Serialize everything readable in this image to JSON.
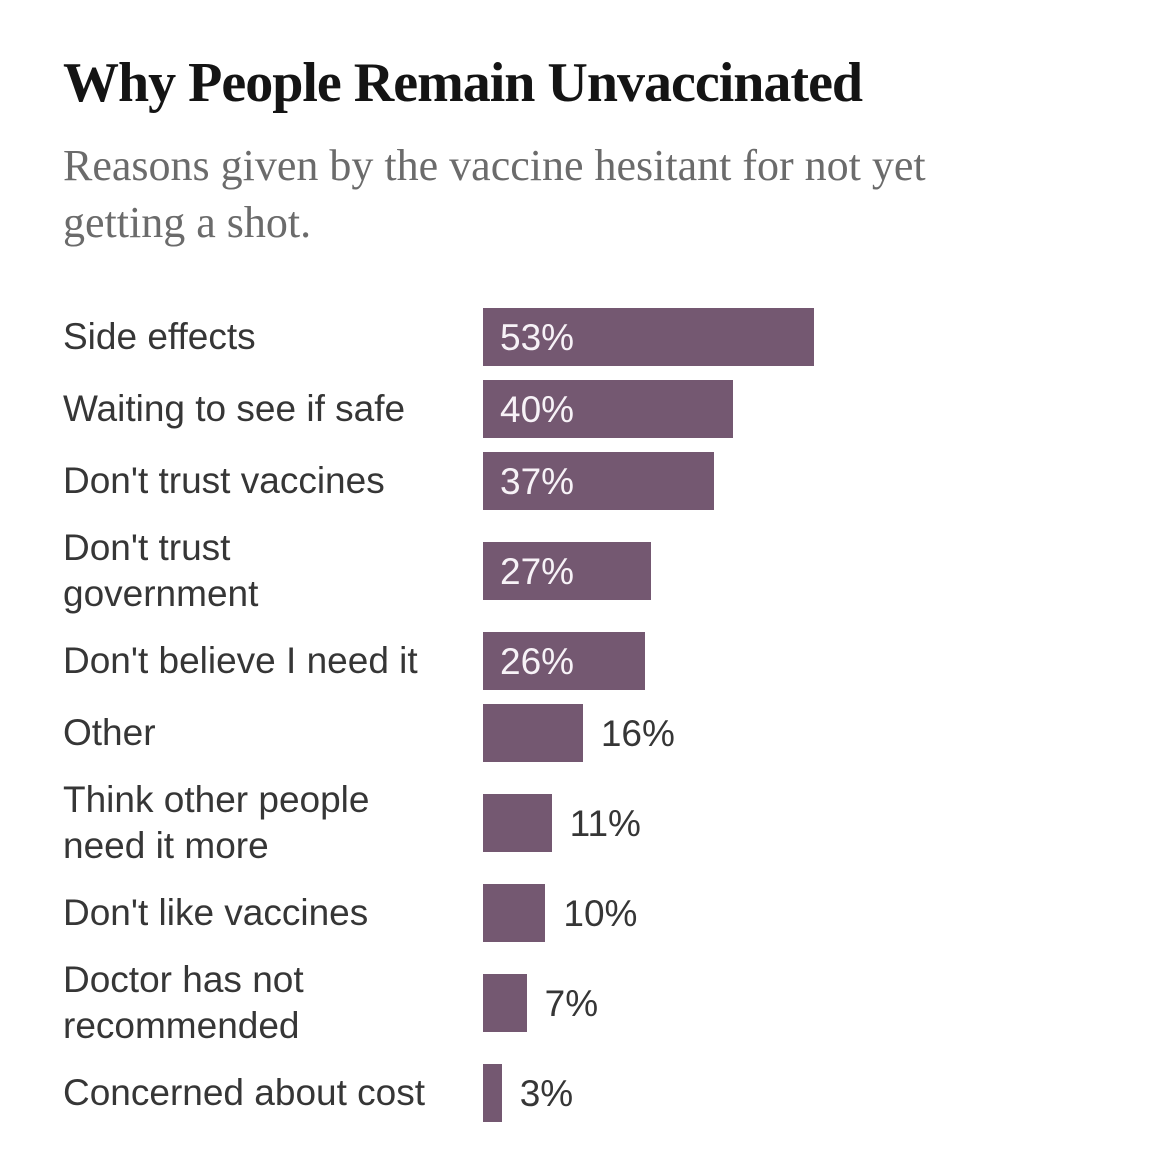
{
  "header": {
    "title": "Why People Remain Unvaccinated",
    "subtitle": "Reasons given by the vaccine hesitant for not yet\ngetting a shot."
  },
  "chart_data": {
    "type": "bar",
    "orientation": "horizontal",
    "title": "Why People Remain Unvaccinated",
    "subtitle": "Reasons given by the vaccine hesitant for not yet getting a shot.",
    "value_unit": "%",
    "xlim": [
      0,
      100
    ],
    "grid": false,
    "axes_visible": false,
    "categories": [
      "Side effects",
      "Waiting to see if safe",
      "Don't trust vaccines",
      "Don't trust\ngovernment",
      "Don't believe I need it",
      "Other",
      "Think other people\nneed it more",
      "Don't like vaccines",
      "Doctor has not\nrecommended",
      "Concerned about cost"
    ],
    "values": [
      53,
      40,
      37,
      27,
      26,
      16,
      11,
      10,
      7,
      3
    ],
    "value_labels": [
      "53%",
      "40%",
      "37%",
      "27%",
      "26%",
      "16%",
      "11%",
      "10%",
      "7%",
      "3%"
    ],
    "value_label_inside_threshold": 20,
    "bar_color": "#745871"
  },
  "colors": {
    "background": "#ffffff",
    "bar": "#745871",
    "title_text": "#141414",
    "subtitle_text": "#6b6b6b",
    "category_label_text": "#363636",
    "value_label_inside_text": "#f7f2f7",
    "value_label_outside_text": "#363636"
  }
}
